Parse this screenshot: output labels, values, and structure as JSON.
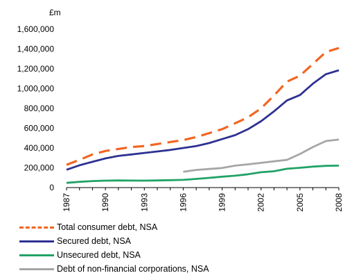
{
  "chart_data": {
    "type": "line",
    "unit_label": "£m",
    "x": [
      1987,
      1988,
      1989,
      1990,
      1991,
      1992,
      1993,
      1994,
      1995,
      1996,
      1997,
      1998,
      1999,
      2000,
      2001,
      2002,
      2003,
      2004,
      2005,
      2006,
      2007,
      2008
    ],
    "xticks": [
      "1987",
      "1990",
      "1993",
      "1996",
      "1999",
      "2002",
      "2005",
      "2008"
    ],
    "yticks": [
      "0",
      "200,000",
      "400,000",
      "600,000",
      "800,000",
      "1,000,000",
      "1,200,000",
      "1,400,000",
      "1,600,000"
    ],
    "ylim": [
      0,
      1600000
    ],
    "xlim": [
      1987,
      2008
    ],
    "grid": false,
    "legend_position": "bottom",
    "series": [
      {
        "name": "Total consumer debt, NSA",
        "color": "#f26522",
        "dashed": true,
        "values": [
          230000,
          280000,
          335000,
          370000,
          390000,
          410000,
          420000,
          440000,
          460000,
          480000,
          510000,
          550000,
          590000,
          650000,
          710000,
          800000,
          930000,
          1070000,
          1130000,
          1250000,
          1370000,
          1410000
        ]
      },
      {
        "name": "Secured debt, NSA",
        "color": "#2e3192",
        "dashed": false,
        "values": [
          180000,
          225000,
          260000,
          295000,
          320000,
          335000,
          350000,
          365000,
          380000,
          400000,
          420000,
          450000,
          490000,
          530000,
          590000,
          670000,
          770000,
          880000,
          935000,
          1050000,
          1145000,
          1185000
        ]
      },
      {
        "name": "Unsecured debt, NSA",
        "color": "#21a366",
        "dashed": false,
        "values": [
          48000,
          58000,
          66000,
          70000,
          72000,
          71000,
          70000,
          72000,
          75000,
          78000,
          88000,
          98000,
          110000,
          120000,
          135000,
          155000,
          165000,
          190000,
          200000,
          212000,
          220000,
          222000
        ]
      },
      {
        "name": "Debt of non-financial corporations, NSA",
        "color": "#a6a6a6",
        "dashed": false,
        "values": [
          null,
          null,
          null,
          null,
          null,
          null,
          null,
          null,
          null,
          160000,
          178000,
          188000,
          198000,
          222000,
          235000,
          250000,
          265000,
          280000,
          340000,
          410000,
          470000,
          485000
        ]
      }
    ]
  }
}
